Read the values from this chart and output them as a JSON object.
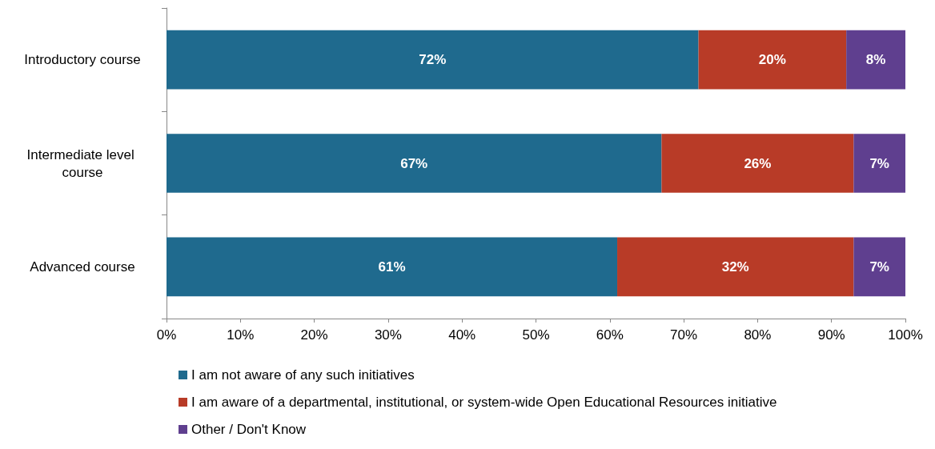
{
  "chart_data": {
    "type": "bar",
    "orientation": "horizontal",
    "stacked": true,
    "categories": [
      "Introductory course",
      "Intermediate level course",
      "Advanced course"
    ],
    "series": [
      {
        "name": "I am not aware of any such initiatives",
        "color": "#1f6a8e",
        "values": [
          72,
          67,
          61
        ],
        "value_labels": [
          "72%",
          "67%",
          "61%"
        ]
      },
      {
        "name": "I am aware of a departmental, institutional, or system-wide Open Educational Resources initiative",
        "color": "#b83b27",
        "values": [
          20,
          26,
          32
        ],
        "value_labels": [
          "20%",
          "26%",
          "32%"
        ]
      },
      {
        "name": "Other / Don't Know",
        "color": "#5f3f8f",
        "values": [
          8,
          7,
          7
        ],
        "value_labels": [
          "8%",
          "7%",
          "7%"
        ]
      }
    ],
    "xlim": [
      0,
      100
    ],
    "xticks": [
      {
        "value": 0,
        "label": "0%"
      },
      {
        "value": 10,
        "label": "10%"
      },
      {
        "value": 20,
        "label": "20%"
      },
      {
        "value": 30,
        "label": "30%"
      },
      {
        "value": 40,
        "label": "40%"
      },
      {
        "value": 50,
        "label": "50%"
      },
      {
        "value": 60,
        "label": "60%"
      },
      {
        "value": 70,
        "label": "70%"
      },
      {
        "value": 80,
        "label": "80%"
      },
      {
        "value": 90,
        "label": "90%"
      },
      {
        "value": 100,
        "label": "100%"
      }
    ],
    "grid": false,
    "legend": "bottom"
  }
}
